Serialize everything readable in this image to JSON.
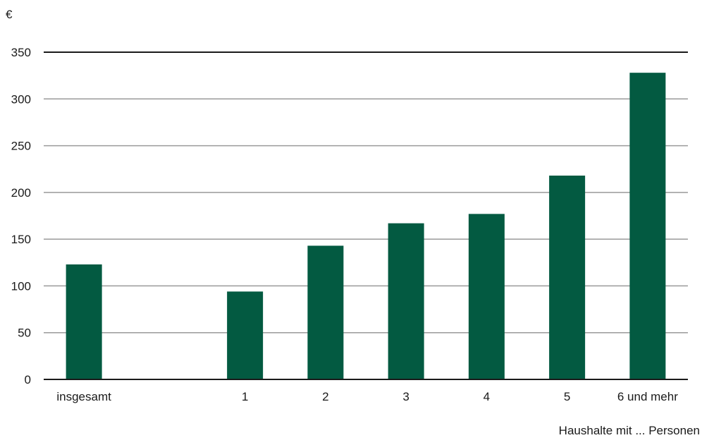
{
  "chart_data": {
    "type": "bar",
    "title": "",
    "ylabel": "€",
    "xlabel": "Haushalte mit ... Personen",
    "ylim": [
      0,
      350
    ],
    "yticks": [
      0,
      50,
      100,
      150,
      200,
      250,
      300,
      350
    ],
    "grid": true,
    "categories": [
      "insgesamt",
      "",
      "1",
      "2",
      "3",
      "4",
      "5",
      "6 und mehr"
    ],
    "values": [
      123,
      null,
      94,
      143,
      167,
      177,
      218,
      328
    ],
    "colors": {
      "bar": "#035a41",
      "grid": "#9a9a9a",
      "axis": "#1a1a1a"
    }
  }
}
